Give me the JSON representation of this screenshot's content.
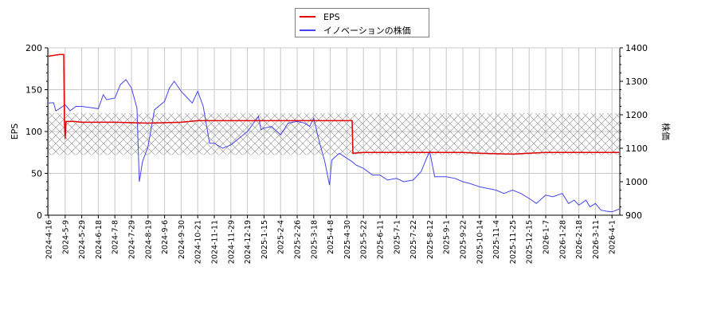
{
  "legend": {
    "items": [
      {
        "label": "EPS",
        "color": "#e00000"
      },
      {
        "label": "イノベーションの株価",
        "color": "#4444ee"
      }
    ]
  },
  "axes": {
    "left_label": "EPS",
    "right_label": "株価",
    "left_ticks": [
      "0",
      "50",
      "100",
      "150",
      "200"
    ],
    "right_ticks": [
      "900",
      "1000",
      "1100",
      "1200",
      "1300",
      "1400"
    ]
  },
  "chart_data": {
    "type": "line",
    "title": "",
    "xlabel": "",
    "ylabel": "EPS",
    "y2label": "株価",
    "ylim": [
      0,
      200
    ],
    "y2lim": [
      900,
      1400
    ],
    "grid": true,
    "legend_position": "top-center",
    "x_tick_labels": [
      "2024-4-16",
      "2024-5-9",
      "2024-5-29",
      "2024-6-18",
      "2024-7-8",
      "2024-7-29",
      "2024-8-19",
      "2024-9-6",
      "2024-9-30",
      "2024-10-21",
      "2024-11-11",
      "2024-11-29",
      "2024-12-19",
      "2025-1-15",
      "2025-2-4",
      "2025-2-26",
      "2025-3-18",
      "2025-4-8",
      "2025-4-30",
      "2025-5-22",
      "2025-6-11",
      "2025-7-1",
      "2025-7-22",
      "2025-8-12",
      "2025-9-1",
      "2025-9-22",
      "2025-10-14",
      "2025-11-4",
      "2025-11-25",
      "2025-12-15",
      "2026-1-7",
      "2026-1-28",
      "2026-2-18",
      "2026-3-11",
      "2026-4-1"
    ],
    "shaded_band": {
      "axis": "left",
      "from": 72,
      "to": 122,
      "style": "crosshatch"
    },
    "series": [
      {
        "name": "EPS",
        "axis": "left",
        "color": "#e00000",
        "points": [
          [
            "2024-4-16",
            190
          ],
          [
            "2024-4-23",
            191
          ],
          [
            "2024-5-1",
            192
          ],
          [
            "2024-5-7",
            192
          ],
          [
            "2024-5-8",
            110
          ],
          [
            "2024-5-9",
            91
          ],
          [
            "2024-5-10",
            112
          ],
          [
            "2024-5-20",
            112
          ],
          [
            "2024-5-29",
            111
          ],
          [
            "2024-7-8",
            111
          ],
          [
            "2024-8-19",
            110
          ],
          [
            "2024-9-30",
            111
          ],
          [
            "2024-10-21",
            113
          ],
          [
            "2024-12-19",
            113
          ],
          [
            "2025-2-26",
            113
          ],
          [
            "2025-4-30",
            113
          ],
          [
            "2025-5-7",
            113
          ],
          [
            "2025-5-8",
            74
          ],
          [
            "2025-5-22",
            75
          ],
          [
            "2025-7-22",
            75
          ],
          [
            "2025-8-12",
            75
          ],
          [
            "2025-9-22",
            75
          ],
          [
            "2025-10-14",
            74
          ],
          [
            "2025-11-25",
            73
          ],
          [
            "2025-12-15",
            74
          ],
          [
            "2026-1-7",
            75
          ],
          [
            "2026-4-10",
            75
          ]
        ]
      },
      {
        "name": "イノベーションの株価",
        "axis": "right",
        "color": "#4444ee",
        "points": [
          [
            "2024-4-16",
            1235
          ],
          [
            "2024-4-23",
            1236
          ],
          [
            "2024-4-26",
            1212
          ],
          [
            "2024-5-1",
            1218
          ],
          [
            "2024-5-9",
            1230
          ],
          [
            "2024-5-15",
            1212
          ],
          [
            "2024-5-22",
            1225
          ],
          [
            "2024-5-29",
            1225
          ],
          [
            "2024-6-7",
            1222
          ],
          [
            "2024-6-18",
            1218
          ],
          [
            "2024-6-24",
            1260
          ],
          [
            "2024-6-28",
            1245
          ],
          [
            "2024-7-8",
            1250
          ],
          [
            "2024-7-15",
            1290
          ],
          [
            "2024-7-22",
            1305
          ],
          [
            "2024-7-29",
            1280
          ],
          [
            "2024-8-5",
            1220
          ],
          [
            "2024-8-8",
            1000
          ],
          [
            "2024-8-12",
            1060
          ],
          [
            "2024-8-19",
            1105
          ],
          [
            "2024-8-26",
            1215
          ],
          [
            "2024-9-6",
            1240
          ],
          [
            "2024-9-13",
            1280
          ],
          [
            "2024-9-20",
            1300
          ],
          [
            "2024-9-30",
            1270
          ],
          [
            "2024-10-8",
            1250
          ],
          [
            "2024-10-14",
            1235
          ],
          [
            "2024-10-21",
            1270
          ],
          [
            "2024-10-28",
            1225
          ],
          [
            "2024-11-5",
            1115
          ],
          [
            "2024-11-11",
            1115
          ],
          [
            "2024-11-20",
            1100
          ],
          [
            "2024-11-29",
            1110
          ],
          [
            "2024-12-9",
            1130
          ],
          [
            "2024-12-19",
            1150
          ],
          [
            "2025-1-6",
            1195
          ],
          [
            "2025-1-10",
            1155
          ],
          [
            "2025-1-15",
            1160
          ],
          [
            "2025-1-24",
            1165
          ],
          [
            "2025-2-4",
            1140
          ],
          [
            "2025-2-14",
            1175
          ],
          [
            "2025-2-26",
            1180
          ],
          [
            "2025-3-7",
            1175
          ],
          [
            "2025-3-13",
            1165
          ],
          [
            "2025-3-18",
            1190
          ],
          [
            "2025-3-25",
            1120
          ],
          [
            "2025-4-1",
            1060
          ],
          [
            "2025-4-7",
            990
          ],
          [
            "2025-4-10",
            1065
          ],
          [
            "2025-4-20",
            1085
          ],
          [
            "2025-4-30",
            1070
          ],
          [
            "2025-5-7",
            1060
          ],
          [
            "2025-5-12",
            1050
          ],
          [
            "2025-5-22",
            1040
          ],
          [
            "2025-6-2",
            1020
          ],
          [
            "2025-6-11",
            1020
          ],
          [
            "2025-6-20",
            1005
          ],
          [
            "2025-7-1",
            1010
          ],
          [
            "2025-7-10",
            1000
          ],
          [
            "2025-7-22",
            1005
          ],
          [
            "2025-8-1",
            1030
          ],
          [
            "2025-8-8",
            1070
          ],
          [
            "2025-8-12",
            1090
          ],
          [
            "2025-8-18",
            1015
          ],
          [
            "2025-9-1",
            1015
          ],
          [
            "2025-9-12",
            1010
          ],
          [
            "2025-9-22",
            1000
          ],
          [
            "2025-10-1",
            995
          ],
          [
            "2025-10-14",
            985
          ],
          [
            "2025-10-24",
            980
          ],
          [
            "2025-11-4",
            975
          ],
          [
            "2025-11-14",
            965
          ],
          [
            "2025-11-25",
            975
          ],
          [
            "2025-12-5",
            965
          ],
          [
            "2025-12-15",
            950
          ],
          [
            "2025-12-25",
            935
          ],
          [
            "2026-1-7",
            960
          ],
          [
            "2026-1-16",
            955
          ],
          [
            "2026-1-28",
            965
          ],
          [
            "2026-2-5",
            935
          ],
          [
            "2026-2-12",
            945
          ],
          [
            "2026-2-18",
            930
          ],
          [
            "2026-2-27",
            945
          ],
          [
            "2026-3-4",
            925
          ],
          [
            "2026-3-11",
            935
          ],
          [
            "2026-3-18",
            915
          ],
          [
            "2026-3-25",
            912
          ],
          [
            "2026-4-1",
            910
          ],
          [
            "2026-4-10",
            918
          ]
        ]
      }
    ]
  }
}
